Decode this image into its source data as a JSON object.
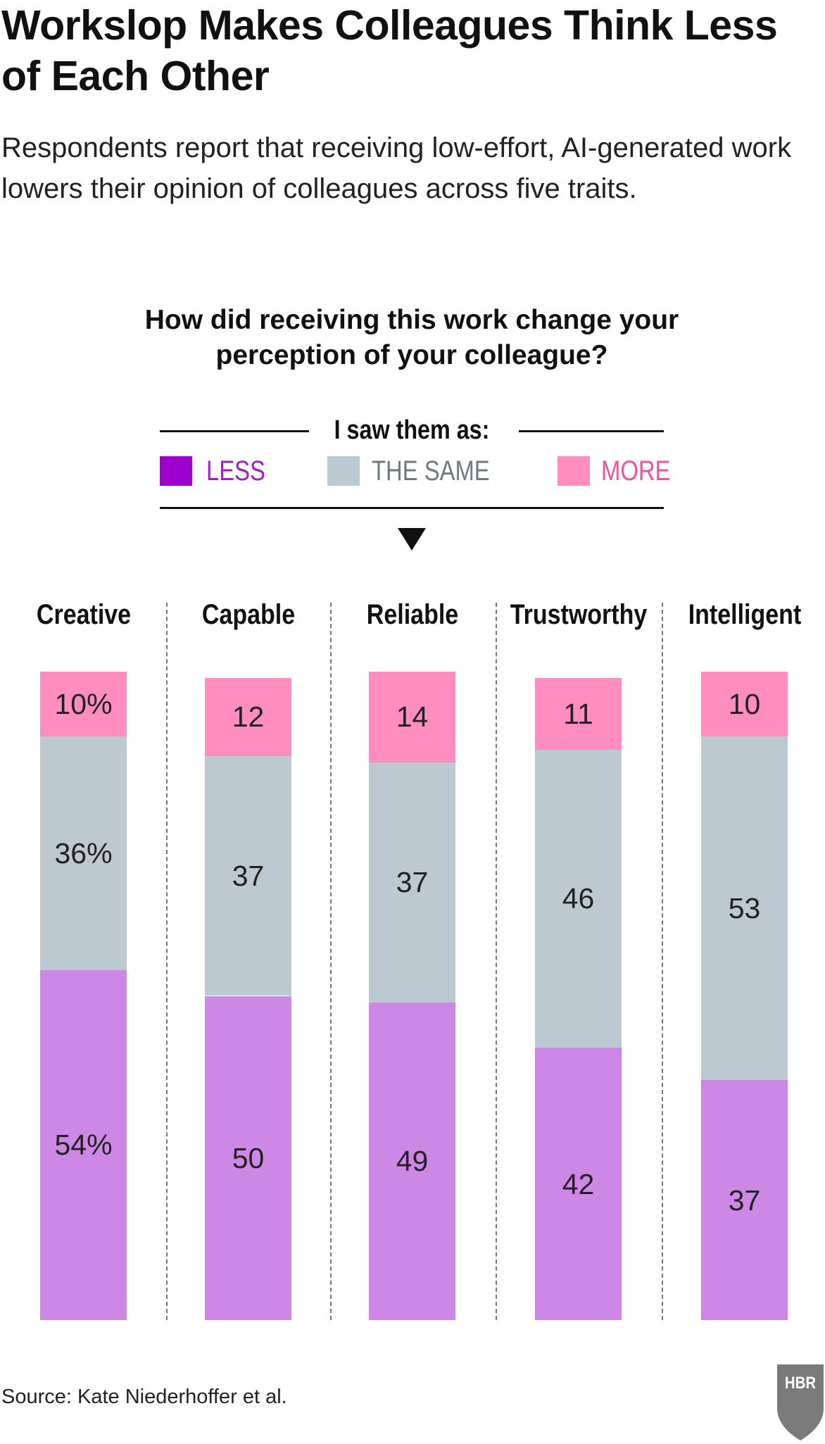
{
  "title": "Workslop Makes Colleagues Think Less of Each Other",
  "subtitle": "Respondents report that receiving low-effort, AI-generated work lowers their opinion of colleagues across five traits.",
  "source": "Source: Kate Niederhoffer et al.",
  "logo_text": "HBR",
  "colors": {
    "less_bar": "#CD88E6",
    "less_swatch": "#9D00CC",
    "less_text": "#A21DC4",
    "same": "#BDC9D1",
    "same_text": "#6F7A7E",
    "more": "#FF8DC0",
    "more_text": "#F0529E",
    "logo": "#7A7A7A"
  },
  "chart_data": {
    "type": "bar",
    "stacked": true,
    "title": "How did receiving this work change your perception of your colleague?",
    "legend_title": "I saw them as:",
    "legend_placement": "top",
    "categories": [
      "Creative",
      "Capable",
      "Reliable",
      "Trustworthy",
      "Intelligent"
    ],
    "series": [
      {
        "name": "LESS",
        "values": [
          54,
          50,
          49,
          42,
          37
        ],
        "labels": [
          "54%",
          "50",
          "49",
          "42",
          "37"
        ]
      },
      {
        "name": "THE SAME",
        "values": [
          36,
          37,
          37,
          46,
          53
        ],
        "labels": [
          "36%",
          "37",
          "37",
          "46",
          "53"
        ]
      },
      {
        "name": "MORE",
        "values": [
          10,
          12,
          14,
          11,
          10
        ],
        "labels": [
          "10%",
          "12",
          "14",
          "11",
          "10"
        ]
      }
    ],
    "ylim": [
      0,
      100
    ],
    "grid": false
  }
}
